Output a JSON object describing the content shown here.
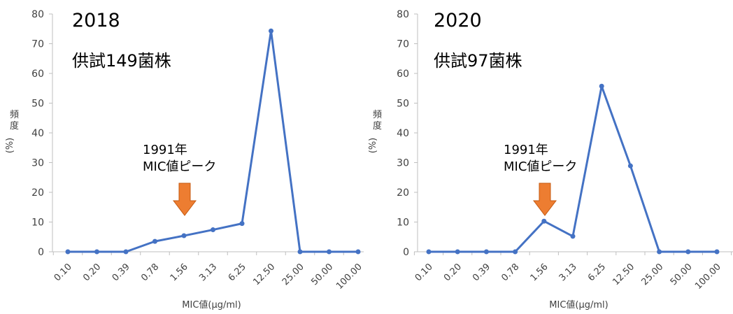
{
  "chart_data": [
    {
      "type": "line",
      "title": "2018",
      "subtitle": "供試149菌株",
      "xlabel": "MIC値(μg/ml)",
      "ylabel": "頻度(%)",
      "categories": [
        "0.10",
        "0.20",
        "0.39",
        "0.78",
        "1.56",
        "3.13",
        "6.25",
        "12.50",
        "25.00",
        "50.00",
        "100.00"
      ],
      "values": [
        0,
        0,
        0,
        3.5,
        5.4,
        7.4,
        9.5,
        74.3,
        0,
        0,
        0
      ],
      "ylim": [
        0,
        80
      ],
      "yticks": [
        0,
        10,
        20,
        30,
        40,
        50,
        60,
        70,
        80
      ],
      "grid": false,
      "line_color": "#4472C4",
      "annotation": {
        "line1": "1991年",
        "line2": "MIC値ピーク",
        "arrow_color": "#ED7D31"
      }
    },
    {
      "type": "line",
      "title": "2020",
      "subtitle": "供試97菌株",
      "xlabel": "MIC値(μg/ml)",
      "ylabel": "頻度(%)",
      "categories": [
        "0.10",
        "0.20",
        "0.39",
        "0.78",
        "1.56",
        "3.13",
        "6.25",
        "12.50",
        "25.00",
        "50.00",
        "100.00"
      ],
      "values": [
        0,
        0,
        0,
        0,
        10.3,
        5.2,
        55.7,
        28.9,
        0,
        0,
        0
      ],
      "ylim": [
        0,
        80
      ],
      "yticks": [
        0,
        10,
        20,
        30,
        40,
        50,
        60,
        70,
        80
      ],
      "grid": false,
      "line_color": "#4472C4",
      "annotation": {
        "line1": "1991年",
        "line2": "MIC値ピーク",
        "arrow_color": "#ED7D31"
      }
    }
  ]
}
